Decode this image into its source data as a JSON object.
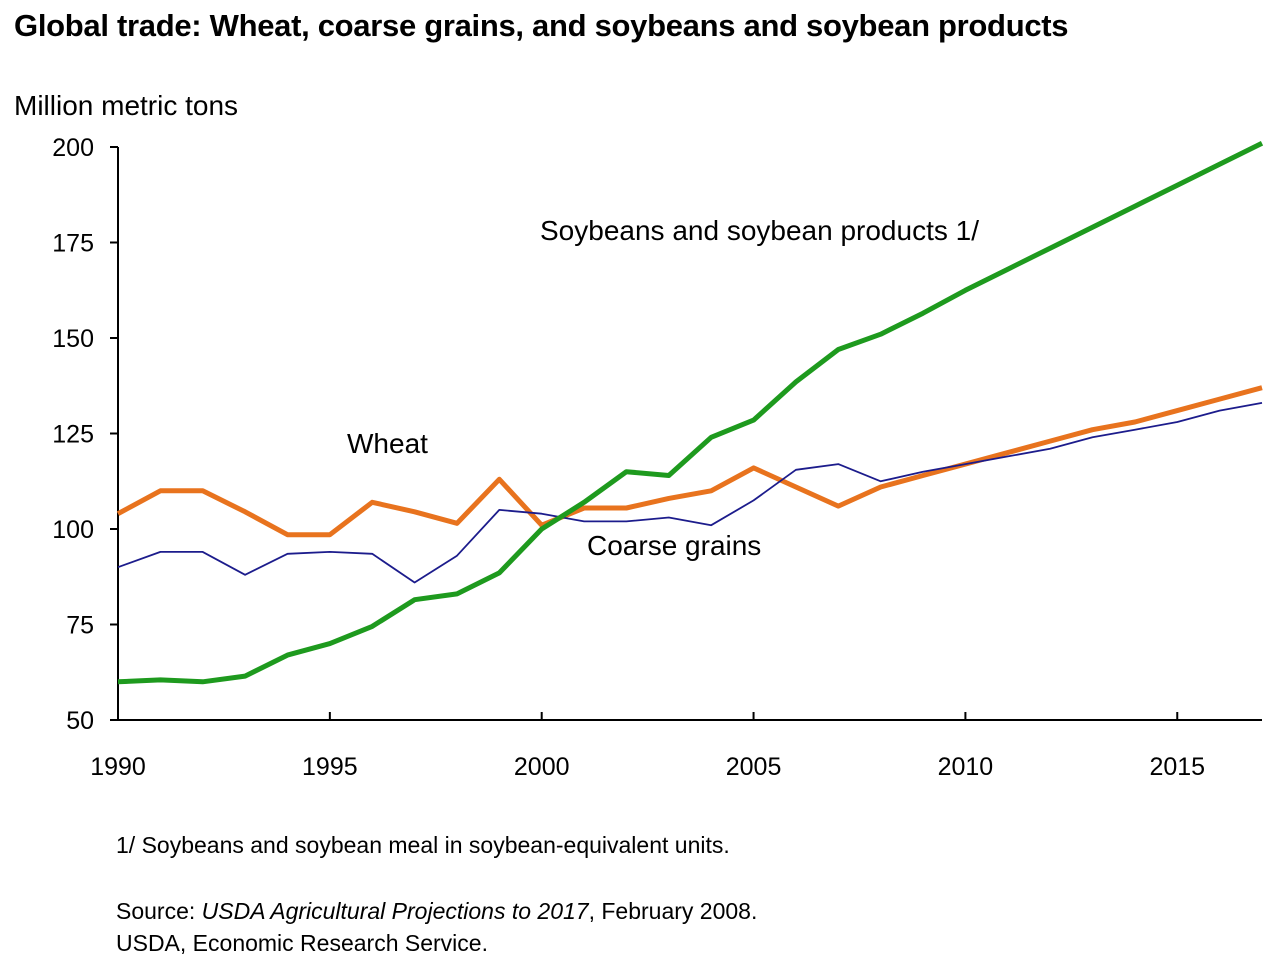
{
  "chart_data": {
    "type": "line",
    "title": "Global trade: Wheat, coarse grains, and soybeans and soybean products",
    "ylabel": "Million metric tons",
    "xlabel": "",
    "xlim": [
      1990,
      2017
    ],
    "ylim": [
      50,
      200
    ],
    "xticks": [
      1990,
      1995,
      2000,
      2005,
      2010,
      2015
    ],
    "yticks": [
      50,
      75,
      100,
      125,
      150,
      175,
      200
    ],
    "grid": false,
    "legend": "inline labels",
    "x": [
      1990,
      1991,
      1992,
      1993,
      1994,
      1995,
      1996,
      1997,
      1998,
      1999,
      2000,
      2001,
      2002,
      2003,
      2004,
      2005,
      2006,
      2007,
      2008,
      2009,
      2010,
      2011,
      2012,
      2013,
      2014,
      2015,
      2016,
      2017
    ],
    "series": [
      {
        "name": "Wheat",
        "color": "#e8731e",
        "values": [
          104,
          110,
          110,
          104.5,
          98.5,
          98.5,
          107,
          104.5,
          101.5,
          113,
          101,
          105.5,
          105.5,
          108,
          110,
          116,
          111,
          106,
          111,
          114,
          117,
          120,
          123,
          126,
          128,
          131,
          134,
          137
        ]
      },
      {
        "name": "Coarse grains",
        "color": "#1c1c8c",
        "values": [
          90,
          94,
          94,
          88,
          93.5,
          94,
          93.5,
          86,
          93,
          105,
          104,
          102,
          102,
          103,
          101,
          107.5,
          115.5,
          117,
          112.5,
          115,
          117,
          119,
          121,
          124,
          126,
          128,
          131,
          133
        ]
      },
      {
        "name": "Soybeans and soybean products 1/",
        "color": "#1e9a1e",
        "values": [
          60,
          60.5,
          60,
          61.5,
          67,
          70,
          74.5,
          81.5,
          83,
          88.5,
          100,
          107,
          115,
          114,
          124,
          128.5,
          138.5,
          147,
          151,
          156.5,
          162.5,
          168,
          173.5,
          179,
          184.5,
          190,
          195.5,
          201
        ]
      }
    ],
    "footnote": "1/ Soybeans and soybean meal in soybean-equivalent units.",
    "source_label": "Source: ",
    "source_title": "USDA Agricultural Projections to 2017",
    "source_date": ", February 2008.",
    "organization": "USDA, Economic Research Service."
  }
}
